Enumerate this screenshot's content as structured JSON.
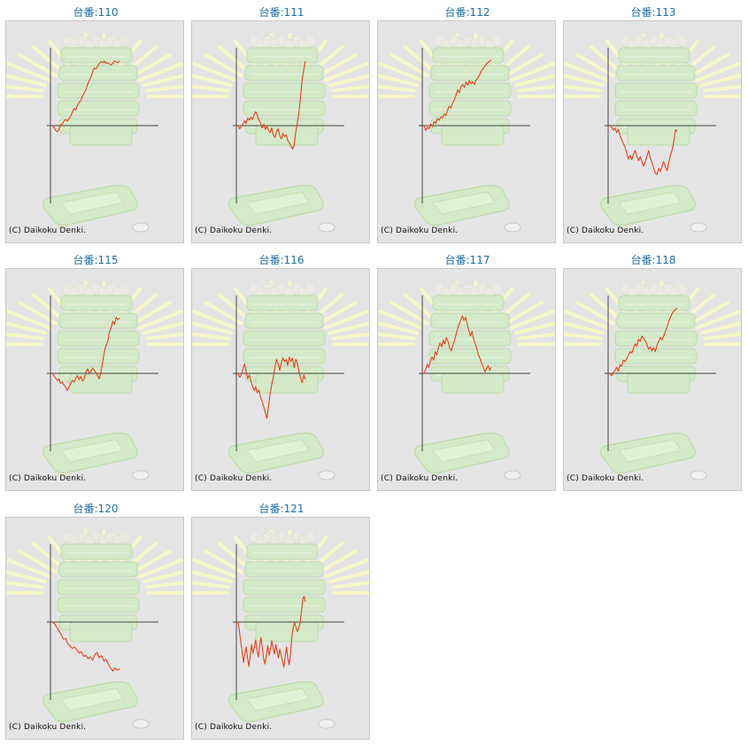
{
  "copyright": "(C) Daikoku Denki.",
  "colors": {
    "title": "#1f6fa8",
    "line": "#e8401a",
    "axis": "#444444",
    "panel": "#e4e4e4"
  },
  "chart_data": [
    {
      "type": "line",
      "title": "台番:110",
      "x": [
        0,
        1,
        2,
        3,
        4,
        5,
        6,
        7,
        8,
        9,
        10,
        11,
        12,
        13,
        14,
        15,
        16,
        17,
        18,
        19,
        20,
        21,
        22,
        23,
        24,
        25,
        26,
        27,
        28,
        29,
        30,
        31,
        32,
        33,
        34,
        35,
        36,
        37,
        38,
        39,
        40
      ],
      "y": [
        0,
        -200,
        -600,
        -800,
        -500,
        100,
        200,
        600,
        800,
        600,
        900,
        1200,
        1800,
        2200,
        2000,
        2600,
        3000,
        3200,
        3800,
        4200,
        4600,
        5300,
        5800,
        6200,
        6900,
        7400,
        7300,
        7600,
        8000,
        8200,
        8100,
        8300,
        8000,
        8100,
        7900,
        7800,
        8000,
        8300,
        8200,
        8100,
        8300
      ]
    },
    {
      "type": "line",
      "title": "台番:111",
      "x": [
        0,
        1,
        2,
        3,
        4,
        5,
        6,
        7,
        8,
        9,
        10,
        11,
        12,
        13,
        14,
        15,
        16,
        17,
        18,
        19,
        20,
        21,
        22,
        23,
        24,
        25,
        26,
        27,
        28,
        29,
        30,
        31,
        32,
        33,
        34,
        35,
        36,
        37,
        38,
        39,
        40,
        41,
        42
      ],
      "y": [
        0,
        -400,
        -100,
        200,
        600,
        300,
        1000,
        700,
        1100,
        800,
        1400,
        1800,
        1300,
        700,
        400,
        -300,
        200,
        -500,
        -100,
        -600,
        -900,
        -300,
        -1200,
        -1500,
        -800,
        -400,
        -1300,
        -1700,
        -1000,
        -1400,
        -1200,
        -1900,
        -2200,
        -2600,
        -3000,
        -2500,
        -800,
        400,
        1800,
        3800,
        6000,
        7200,
        8300
      ]
    },
    {
      "type": "line",
      "title": "台番:112",
      "x": [
        0,
        1,
        2,
        3,
        4,
        5,
        6,
        7,
        8,
        9,
        10,
        11,
        12,
        13,
        14,
        15,
        16,
        17,
        18,
        19,
        20,
        21,
        22,
        23,
        24,
        25,
        26,
        27,
        28,
        29,
        30,
        31,
        32,
        33,
        34,
        35,
        36,
        37,
        38,
        39,
        40
      ],
      "y": [
        0,
        -600,
        -200,
        -400,
        200,
        -100,
        500,
        300,
        900,
        700,
        1100,
        1000,
        1500,
        1300,
        2000,
        2500,
        2300,
        2900,
        3300,
        3900,
        4600,
        4200,
        5000,
        5300,
        4900,
        5600,
        5200,
        5800,
        5400,
        5600,
        5300,
        5900,
        6100,
        6500,
        7000,
        7300,
        7600,
        7900,
        8100,
        8300,
        8400
      ]
    },
    {
      "type": "line",
      "title": "台番:113",
      "x": [
        0,
        1,
        2,
        3,
        4,
        5,
        6,
        7,
        8,
        9,
        10,
        11,
        12,
        13,
        14,
        15,
        16,
        17,
        18,
        19,
        20,
        21,
        22,
        23,
        24,
        25,
        26,
        27,
        28,
        29,
        30,
        31,
        32,
        33,
        34,
        35,
        36,
        37,
        38,
        39,
        40
      ],
      "y": [
        0,
        -200,
        -600,
        -300,
        -900,
        -500,
        -1300,
        -1800,
        -2300,
        -2800,
        -3500,
        -4300,
        -3800,
        -4400,
        -3700,
        -3200,
        -3900,
        -4500,
        -4000,
        -4600,
        -5200,
        -4700,
        -3900,
        -3200,
        -4100,
        -4800,
        -5400,
        -6100,
        -6300,
        -5500,
        -5900,
        -5200,
        -4600,
        -5300,
        -5800,
        -4700,
        -3800,
        -3100,
        -2000,
        -500,
        -800
      ]
    },
    {
      "type": "line",
      "title": "台番:115",
      "x": [
        0,
        1,
        2,
        3,
        4,
        5,
        6,
        7,
        8,
        9,
        10,
        11,
        12,
        13,
        14,
        15,
        16,
        17,
        18,
        19,
        20,
        21,
        22,
        23,
        24,
        25,
        26,
        27,
        28,
        29,
        30,
        31,
        32,
        33,
        34,
        35,
        36,
        37,
        38,
        39,
        40
      ],
      "y": [
        0,
        -300,
        -600,
        -900,
        -700,
        -1300,
        -1100,
        -1500,
        -1800,
        -2200,
        -1700,
        -1300,
        -900,
        -1100,
        -600,
        -300,
        -800,
        -400,
        -1000,
        -700,
        200,
        600,
        -100,
        300,
        700,
        400,
        100,
        -300,
        -700,
        200,
        1500,
        2800,
        3600,
        4100,
        5300,
        5900,
        6700,
        6300,
        7200,
        6900,
        7100
      ]
    },
    {
      "type": "line",
      "title": "台番:116",
      "x": [
        0,
        1,
        2,
        3,
        4,
        5,
        6,
        7,
        8,
        9,
        10,
        11,
        12,
        13,
        14,
        15,
        16,
        17,
        18,
        19,
        20,
        21,
        22,
        23,
        24,
        25,
        26,
        27,
        28,
        29,
        30,
        31,
        32,
        33,
        34,
        35,
        36,
        37,
        38,
        39,
        40,
        41,
        42
      ],
      "y": [
        0,
        -500,
        -200,
        600,
        1200,
        300,
        -700,
        -200,
        -1000,
        -1600,
        -2200,
        -1700,
        -2500,
        -2100,
        -3000,
        -3600,
        -4300,
        -5100,
        -5800,
        -4200,
        -2600,
        -1400,
        -500,
        800,
        1800,
        1200,
        400,
        1400,
        2000,
        1500,
        1800,
        1000,
        2100,
        1500,
        2000,
        700,
        1800,
        1300,
        200,
        -600,
        -1200,
        -200,
        -800
      ]
    },
    {
      "type": "line",
      "title": "台番:117",
      "x": [
        0,
        1,
        2,
        3,
        4,
        5,
        6,
        7,
        8,
        9,
        10,
        11,
        12,
        13,
        14,
        15,
        16,
        17,
        18,
        19,
        20,
        21,
        22,
        23,
        24,
        25,
        26,
        27,
        28,
        29,
        30,
        31,
        32,
        33,
        34,
        35,
        36,
        37,
        38,
        39,
        40,
        41,
        42
      ],
      "y": [
        0,
        500,
        1200,
        800,
        1600,
        2100,
        1700,
        2800,
        2400,
        3300,
        3900,
        3400,
        4300,
        3800,
        4600,
        4100,
        3300,
        2900,
        3600,
        4200,
        5000,
        5700,
        6400,
        6900,
        7400,
        6800,
        7200,
        6300,
        5500,
        4800,
        5400,
        4400,
        3800,
        3100,
        2400,
        1900,
        1300,
        800,
        200,
        600,
        1000,
        400,
        800
      ]
    },
    {
      "type": "line",
      "title": "台番:118",
      "x": [
        0,
        1,
        2,
        3,
        4,
        5,
        6,
        7,
        8,
        9,
        10,
        11,
        12,
        13,
        14,
        15,
        16,
        17,
        18,
        19,
        20,
        21,
        22,
        23,
        24,
        25,
        26,
        27,
        28,
        29,
        30,
        31,
        32,
        33,
        34,
        35,
        36,
        37,
        38,
        39,
        40
      ],
      "y": [
        0,
        -300,
        100,
        400,
        800,
        300,
        1100,
        900,
        1700,
        1500,
        1900,
        2300,
        2800,
        2600,
        3200,
        3800,
        3500,
        4400,
        4100,
        4800,
        4500,
        4200,
        3700,
        3100,
        3400,
        2900,
        3300,
        2800,
        3600,
        4100,
        4600,
        4300,
        4800,
        5400,
        6000,
        6700,
        7200,
        7700,
        8000,
        8200,
        8400
      ]
    },
    {
      "type": "line",
      "title": "台番:120",
      "x": [
        0,
        1,
        2,
        3,
        4,
        5,
        6,
        7,
        8,
        9,
        10,
        11,
        12,
        13,
        14,
        15,
        16,
        17,
        18,
        19,
        20,
        21,
        22,
        23,
        24,
        25,
        26,
        27,
        28,
        29,
        30
      ],
      "y": [
        0,
        -200,
        -700,
        -1100,
        -1600,
        -2200,
        -2100,
        -2800,
        -3100,
        -3400,
        -3200,
        -3600,
        -4000,
        -3800,
        -4400,
        -4300,
        -4700,
        -4500,
        -4900,
        -4200,
        -3900,
        -4600,
        -4300,
        -5000,
        -4800,
        -5400,
        -5900,
        -6300,
        -5900,
        -6200,
        -6000
      ]
    },
    {
      "type": "line",
      "title": "台番:121",
      "x": [
        0,
        1,
        2,
        3,
        4,
        5,
        6,
        7,
        8,
        9,
        10,
        11,
        12,
        13,
        14,
        15,
        16,
        17,
        18,
        19,
        20,
        21,
        22,
        23,
        24,
        25,
        26,
        27,
        28,
        29,
        30,
        31,
        32,
        33,
        34,
        35,
        36,
        37,
        38,
        39,
        40,
        41,
        42,
        43,
        44,
        45,
        46,
        47,
        48,
        49,
        50
      ],
      "y": [
        0,
        -1200,
        -2600,
        -3800,
        -5200,
        -4100,
        -3200,
        -4600,
        -5700,
        -4300,
        -2900,
        -4000,
        -3300,
        -2300,
        -3600,
        -4500,
        -3100,
        -2000,
        -3400,
        -4800,
        -5400,
        -4200,
        -3000,
        -4300,
        -3500,
        -2400,
        -3300,
        -4100,
        -2900,
        -3800,
        -4600,
        -3500,
        -4300,
        -5100,
        -5800,
        -4400,
        -3200,
        -4700,
        -5500,
        -3900,
        -1800,
        -600,
        -100,
        -700,
        -1200,
        -900,
        -200,
        1200,
        2900,
        3300,
        2600
      ]
    }
  ]
}
